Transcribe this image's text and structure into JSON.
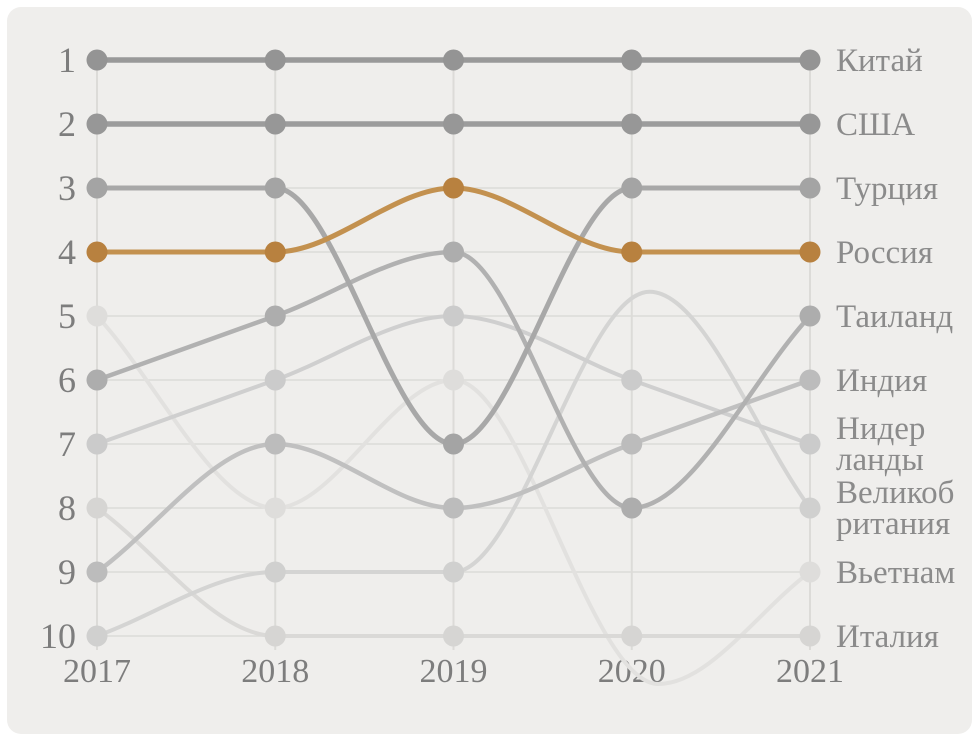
{
  "chart_data": {
    "type": "bump",
    "title": "",
    "years": [
      2017,
      2018,
      2019,
      2020,
      2021
    ],
    "rank_ticks": [
      1,
      2,
      3,
      4,
      5,
      6,
      7,
      8,
      9,
      10
    ],
    "background_color": "#efeeec",
    "grid_color": "#dcdbd8",
    "axis_tick_color": "#7d7d7d",
    "country_label_color": "#8b8b8b",
    "highlight_series": "Россия",
    "highlight_color": "#c3914f",
    "legend_position": "right",
    "grid": "on",
    "series": [
      {
        "name": "Китай",
        "label_lines": [
          "Китай"
        ],
        "color": "#999999",
        "dot_color": "#949494",
        "width": 5.5,
        "rankings": [
          1,
          1,
          1,
          1,
          1
        ]
      },
      {
        "name": "США",
        "label_lines": [
          "США"
        ],
        "color": "#9c9c9c",
        "dot_color": "#979797",
        "width": 5.5,
        "rankings": [
          2,
          2,
          2,
          2,
          2
        ]
      },
      {
        "name": "Турция",
        "label_lines": [
          "Турция"
        ],
        "color": "#a8a8a8",
        "dot_color": "#a4a4a4",
        "width": 5,
        "rankings": [
          3,
          3,
          7,
          3,
          3
        ]
      },
      {
        "name": "Россия",
        "label_lines": [
          "Россия"
        ],
        "color": "#c3914f",
        "dot_color": "#b8813f",
        "width": 5,
        "rankings": [
          4,
          4,
          3,
          4,
          4
        ]
      },
      {
        "name": "Таиланд",
        "label_lines": [
          "Таиланд"
        ],
        "color": "#b1b1b1",
        "dot_color": "#adadad",
        "width": 4.5,
        "rankings": [
          6,
          5,
          4,
          8,
          5
        ]
      },
      {
        "name": "Индия",
        "label_lines": [
          "Индия"
        ],
        "color": "#c0c0c0",
        "dot_color": "#bcbcbc",
        "width": 4.5,
        "rankings": [
          9,
          7,
          8,
          7,
          6
        ]
      },
      {
        "name": "Нидерланды",
        "label_lines": [
          "Нидер",
          "ланды"
        ],
        "color": "#cfcfcf",
        "dot_color": "#cbcbcb",
        "width": 4,
        "rankings": [
          7,
          6,
          5,
          6,
          7
        ]
      },
      {
        "name": "Великобритания",
        "label_lines": [
          "Великоб",
          "ритания"
        ],
        "color": "#d4d4d3",
        "dot_color": "#d0d0cf",
        "width": 4,
        "rankings": [
          10,
          9,
          9,
          null,
          8
        ],
        "path": [
          [
            2017,
            10
          ],
          [
            2018,
            9
          ],
          [
            2019,
            9
          ],
          [
            2020.1,
            4.62
          ],
          [
            2021,
            8
          ]
        ]
      },
      {
        "name": "Вьетнам",
        "label_lines": [
          "Вьетнам"
        ],
        "color": "#e2e1df",
        "dot_color": "#dedddb",
        "width": 4,
        "rankings": [
          5,
          8,
          6,
          null,
          9
        ],
        "path": [
          [
            2017,
            5
          ],
          [
            2018,
            8
          ],
          [
            2019,
            6
          ],
          [
            2020.15,
            10.75
          ],
          [
            2021,
            9
          ]
        ]
      },
      {
        "name": "Италия",
        "label_lines": [
          "Италия"
        ],
        "color": "#dad9d7",
        "dot_color": "#d6d5d3",
        "width": 4,
        "rankings": [
          8,
          10,
          10,
          10,
          10
        ]
      }
    ]
  }
}
